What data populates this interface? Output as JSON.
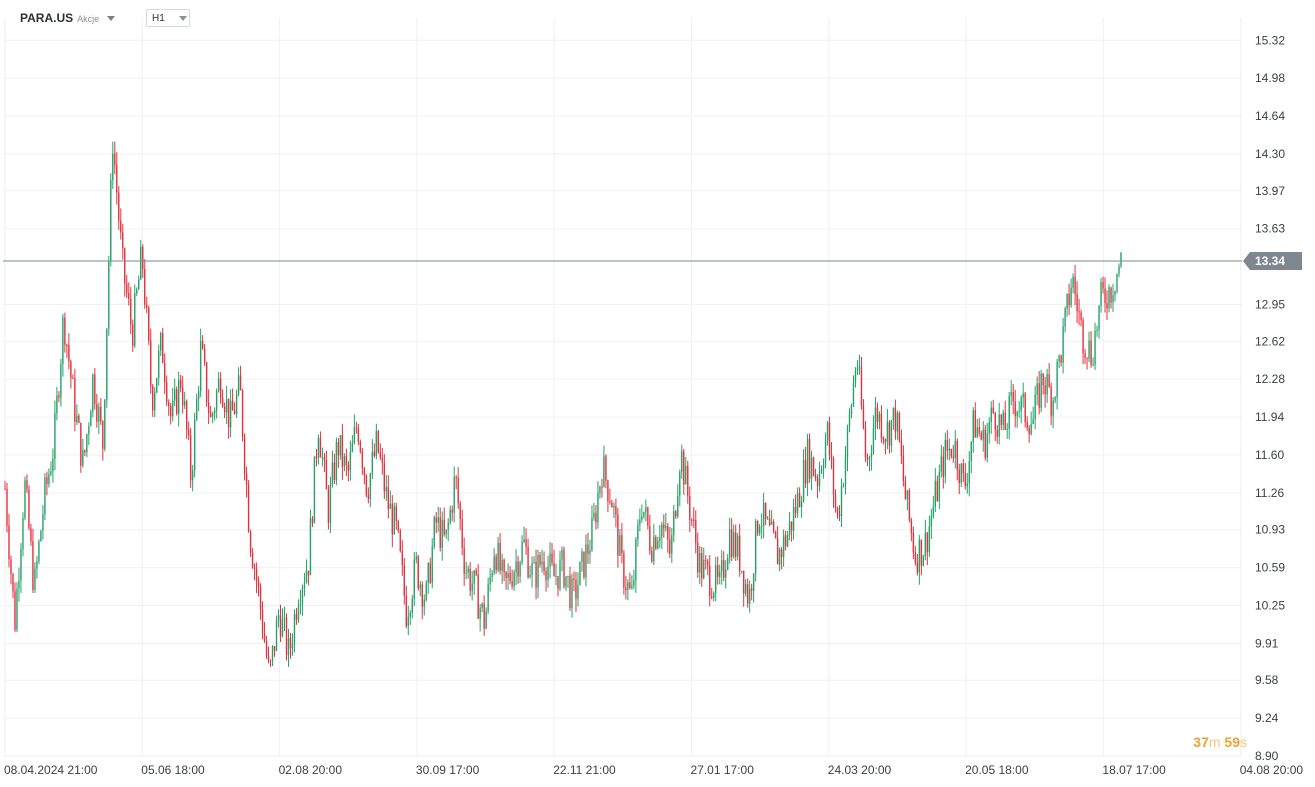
{
  "header": {
    "symbol": "PARA.US",
    "asset_type": "Akcje",
    "interval": "H1"
  },
  "countdown": {
    "minutes": "37",
    "minutes_unit": "m",
    "seconds": "59",
    "seconds_unit": "s"
  },
  "colors": {
    "up": "#26a269",
    "down": "#e0333f",
    "grid": "#eef0f2",
    "axis_text": "#3a3f47",
    "price_line": "#7e878f",
    "price_tag": "#7e878f"
  },
  "chart_data": {
    "type": "candlestick",
    "title": "",
    "ylim": [
      8.9,
      15.52
    ],
    "y_ticks": [
      "15.32",
      "14.98",
      "14.64",
      "14.30",
      "13.97",
      "13.63",
      "12.95",
      "12.62",
      "12.28",
      "11.94",
      "11.60",
      "11.26",
      "10.93",
      "10.59",
      "10.25",
      "9.91",
      "9.58",
      "9.24",
      "8.90"
    ],
    "x_ticks": [
      "08.04.2024  21:00",
      "05.06  18:00",
      "02.08  20:00",
      "30.09  17:00",
      "22.11  21:00",
      "27.01  17:00",
      "24.03  20:00",
      "20.05  18:00",
      "18.07  17:00",
      "04.08  20:00"
    ],
    "current_price": 13.34,
    "current_price_label": "13.34",
    "series_close_path": [
      [
        0,
        11.3
      ],
      [
        1,
        10.1
      ],
      [
        2,
        11.35
      ],
      [
        3,
        10.4
      ],
      [
        4,
        11.2
      ],
      [
        5,
        11.7
      ],
      [
        6,
        12.85
      ],
      [
        7,
        12.1
      ],
      [
        8,
        11.5
      ],
      [
        9,
        12.3
      ],
      [
        10,
        11.7
      ],
      [
        11,
        14.45
      ],
      [
        12,
        13.3
      ],
      [
        13,
        12.7
      ],
      [
        14,
        13.4
      ],
      [
        15,
        12.1
      ],
      [
        16,
        12.6
      ],
      [
        17,
        11.9
      ],
      [
        18,
        12.3
      ],
      [
        19,
        11.4
      ],
      [
        20,
        12.55
      ],
      [
        21,
        11.9
      ],
      [
        22,
        12.3
      ],
      [
        23,
        11.9
      ],
      [
        24,
        12.2
      ],
      [
        25,
        10.9
      ],
      [
        26,
        10.3
      ],
      [
        27,
        9.6
      ],
      [
        28,
        10.2
      ],
      [
        29,
        9.8
      ],
      [
        30,
        10.4
      ],
      [
        31,
        10.65
      ],
      [
        32,
        11.9
      ],
      [
        33,
        11.1
      ],
      [
        34,
        11.7
      ],
      [
        35,
        11.4
      ],
      [
        36,
        11.9
      ],
      [
        37,
        11.3
      ],
      [
        38,
        11.7
      ],
      [
        39,
        11.2
      ],
      [
        40,
        10.9
      ],
      [
        41,
        10.2
      ],
      [
        42,
        10.6
      ],
      [
        43,
        10.3
      ],
      [
        44,
        11.0
      ],
      [
        45,
        10.8
      ],
      [
        46,
        11.4
      ],
      [
        47,
        10.6
      ],
      [
        48,
        10.4
      ],
      [
        49,
        10.1
      ],
      [
        50,
        10.8
      ],
      [
        51,
        10.4
      ],
      [
        52,
        10.6
      ],
      [
        53,
        10.8
      ],
      [
        54,
        10.5
      ],
      [
        55,
        10.7
      ],
      [
        56,
        10.5
      ],
      [
        57,
        10.6
      ],
      [
        58,
        10.3
      ],
      [
        59,
        10.6
      ],
      [
        60,
        10.9
      ],
      [
        61,
        11.5
      ],
      [
        62,
        11.2
      ],
      [
        63,
        10.6
      ],
      [
        64,
        10.3
      ],
      [
        65,
        11.2
      ],
      [
        66,
        10.8
      ],
      [
        67,
        11.0
      ],
      [
        68,
        10.7
      ],
      [
        69,
        11.65
      ],
      [
        70,
        11.1
      ],
      [
        71,
        10.6
      ],
      [
        72,
        10.5
      ],
      [
        73,
        10.4
      ],
      [
        74,
        10.9
      ],
      [
        75,
        10.7
      ],
      [
        76,
        10.3
      ],
      [
        77,
        11.1
      ],
      [
        78,
        10.9
      ],
      [
        79,
        10.7
      ],
      [
        80,
        10.9
      ],
      [
        81,
        11.2
      ],
      [
        82,
        11.6
      ],
      [
        83,
        11.4
      ],
      [
        84,
        11.8
      ],
      [
        85,
        11.0
      ],
      [
        86,
        11.7
      ],
      [
        87,
        12.5
      ],
      [
        88,
        11.5
      ],
      [
        89,
        12.0
      ],
      [
        90,
        11.8
      ],
      [
        91,
        11.95
      ],
      [
        92,
        11.2
      ],
      [
        93,
        10.7
      ],
      [
        94,
        10.8
      ],
      [
        95,
        11.2
      ],
      [
        96,
        11.6
      ],
      [
        97,
        11.7
      ],
      [
        98,
        11.3
      ],
      [
        99,
        11.9
      ],
      [
        100,
        11.7
      ],
      [
        101,
        12.0
      ],
      [
        102,
        11.8
      ],
      [
        103,
        12.1
      ],
      [
        104,
        12.0
      ],
      [
        105,
        11.9
      ],
      [
        106,
        12.3
      ],
      [
        107,
        12.1
      ],
      [
        108,
        12.6
      ],
      [
        109,
        13.2
      ],
      [
        110,
        12.7
      ],
      [
        111,
        12.5
      ],
      [
        112,
        13.0
      ],
      [
        113,
        13.1
      ],
      [
        114,
        13.34
      ]
    ],
    "grid": true,
    "legend": "none"
  }
}
